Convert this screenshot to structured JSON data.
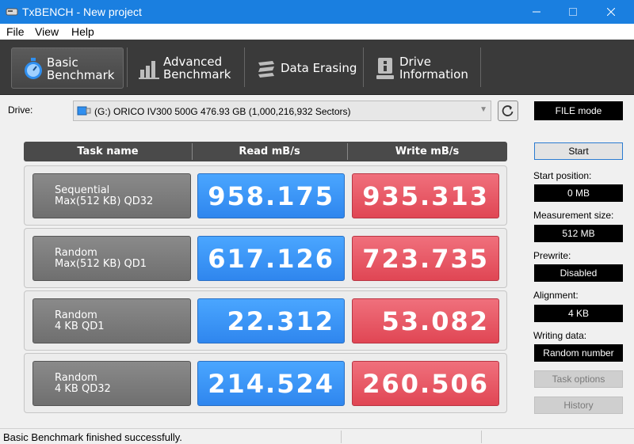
{
  "window": {
    "title": "TxBENCH - New project"
  },
  "menu": [
    "File",
    "View",
    "Help"
  ],
  "toolbar": {
    "tabs": [
      {
        "line1": "Basic",
        "line2": "Benchmark",
        "icon": "stopwatch-icon"
      },
      {
        "line1": "Advanced",
        "line2": "Benchmark",
        "icon": "bar-chart-icon"
      },
      {
        "line1": "Data Erasing",
        "line2": "",
        "icon": "eraser-icon"
      },
      {
        "line1": "Drive",
        "line2": "Information",
        "icon": "drive-info-icon"
      }
    ]
  },
  "drive": {
    "label": "Drive:",
    "selected": "(G:) ORICO IV300 500G  476.93 GB (1,000,216,932 Sectors)"
  },
  "table": {
    "headers": {
      "task": "Task name",
      "read": "Read mB/s",
      "write": "Write mB/s"
    },
    "rows": [
      {
        "name1": "Sequential",
        "name2": "Max(512 KB) QD32",
        "read": "958.175",
        "write": "935.313"
      },
      {
        "name1": "Random",
        "name2": "Max(512 KB) QD1",
        "read": "617.126",
        "write": "723.735"
      },
      {
        "name1": "Random",
        "name2": "4 KB QD1",
        "read": "22.312",
        "write": "53.082"
      },
      {
        "name1": "Random",
        "name2": "4 KB QD32",
        "read": "214.524",
        "write": "260.506"
      }
    ]
  },
  "side": {
    "mode": "FILE mode",
    "start": "Start",
    "start_position_label": "Start position:",
    "start_position": "0 MB",
    "measurement_size_label": "Measurement size:",
    "measurement_size": "512 MB",
    "prewrite_label": "Prewrite:",
    "prewrite": "Disabled",
    "alignment_label": "Alignment:",
    "alignment": "4 KB",
    "writing_data_label": "Writing data:",
    "writing_data": "Random number",
    "task_options": "Task options",
    "history": "History"
  },
  "status": "Basic Benchmark finished successfully.",
  "colors": {
    "titlebar": "#1a7fe0",
    "read": "#3a93f5",
    "write": "#e65a66",
    "toolbar": "#3a3a3a"
  }
}
